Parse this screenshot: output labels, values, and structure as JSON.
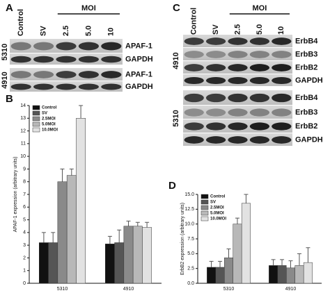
{
  "panel_labels": [
    "A",
    "B",
    "C",
    "D"
  ],
  "blots": [
    {
      "lanes": [
        "Control",
        "SV",
        "2.5",
        "5.0",
        "10"
      ],
      "group_label": "MOI",
      "blocks": [
        {
          "cell_line": "5310",
          "rows": [
            "APAF-1",
            "GAPDH"
          ]
        },
        {
          "cell_line": "4910",
          "rows": [
            "APAF-1",
            "GAPDH"
          ]
        }
      ]
    },
    {
      "lanes": [
        "Control",
        "SV",
        "2.5",
        "5.0",
        "10"
      ],
      "group_label": "MOI",
      "blocks": [
        {
          "cell_line": "4910",
          "rows": [
            "ErbB4",
            "ErbB3",
            "ErbB2",
            "GAPDH"
          ]
        },
        {
          "cell_line": "5310",
          "rows": [
            "ErbB4",
            "ErbB3",
            "ErbB2",
            "GAPDH"
          ]
        }
      ]
    }
  ],
  "chart_data": [
    {
      "type": "bar",
      "y_label": "APAF-1 expression (arbitrary units)",
      "categories": [
        "5310",
        "4910"
      ],
      "ylim": [
        0,
        14
      ],
      "yticks": [
        0,
        1,
        2,
        3,
        4,
        5,
        6,
        7,
        8,
        9,
        10,
        11,
        12,
        13,
        14
      ],
      "legend": "top-left",
      "series": [
        {
          "name": "Control",
          "color": "#111111",
          "values": [
            3.2,
            3.1
          ],
          "errors": [
            0.8,
            0.6
          ]
        },
        {
          "name": "SV",
          "color": "#555555",
          "values": [
            3.2,
            3.2
          ],
          "errors": [
            0.8,
            1.0
          ]
        },
        {
          "name": "2.5MOI",
          "color": "#8a8a8a",
          "values": [
            8.0,
            4.5
          ],
          "errors": [
            1.0,
            0.4
          ]
        },
        {
          "name": "5.0MOI",
          "color": "#b8b8b8",
          "values": [
            8.5,
            4.5
          ],
          "errors": [
            0.5,
            0.3
          ]
        },
        {
          "name": "10.0MOI",
          "color": "#e2e2e2",
          "values": [
            13.0,
            4.4
          ],
          "errors": [
            1.0,
            0.4
          ]
        }
      ]
    },
    {
      "type": "bar",
      "y_label": "ErbB2 expression (arbitrary units)",
      "categories": [
        "5310",
        "4910"
      ],
      "ylim": [
        0,
        15
      ],
      "yticks": [
        {
          "value": 0,
          "label": "0.0"
        },
        {
          "value": 2.5,
          "label": "2.5"
        },
        {
          "value": 5,
          "label": "5.0"
        },
        {
          "value": 7.5,
          "label": "7.5"
        },
        {
          "value": 10,
          "label": "10.0"
        },
        {
          "value": 12.5,
          "label": "12.5"
        },
        {
          "value": 15,
          "label": "15.0"
        }
      ],
      "legend": "top-left",
      "series": [
        {
          "name": "Control",
          "color": "#111111",
          "values": [
            2.7,
            3.0
          ],
          "errors": [
            1.0,
            1.0
          ]
        },
        {
          "name": "SV",
          "color": "#555555",
          "values": [
            2.7,
            3.0
          ],
          "errors": [
            1.0,
            1.0
          ]
        },
        {
          "name": "2.5MOI",
          "color": "#8a8a8a",
          "values": [
            4.3,
            2.6
          ],
          "errors": [
            1.5,
            1.2
          ]
        },
        {
          "name": "5.0MOI",
          "color": "#b8b8b8",
          "values": [
            10.0,
            3.0
          ],
          "errors": [
            1.0,
            2.0
          ]
        },
        {
          "name": "10.0MOI",
          "color": "#e2e2e2",
          "values": [
            13.5,
            3.5
          ],
          "errors": [
            1.5,
            2.5
          ]
        }
      ]
    }
  ]
}
